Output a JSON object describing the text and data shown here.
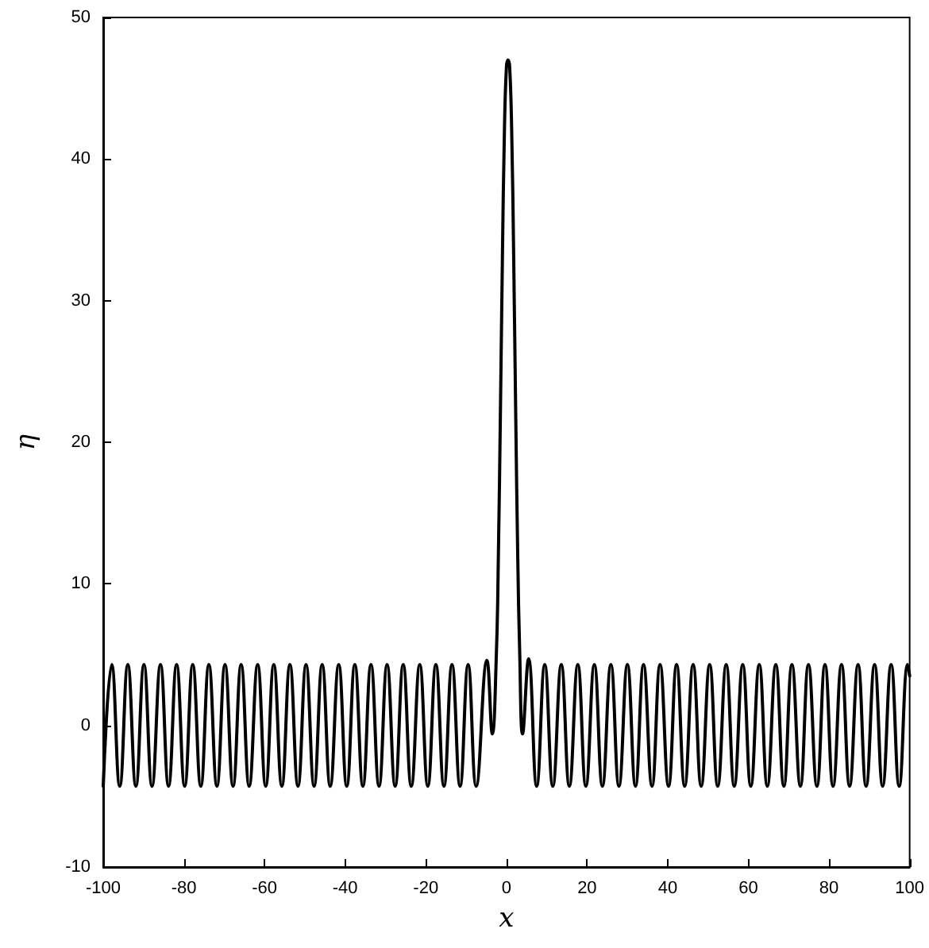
{
  "chart_data": {
    "type": "line",
    "xlabel": "x",
    "ylabel": "η",
    "x": [
      -100,
      -97.9,
      -95.9,
      -93.9,
      -91.9,
      -89.9,
      -87.9,
      -85.8,
      -83.8,
      -81.8,
      -79.8,
      -77.8,
      -75.8,
      -73.8,
      -71.8,
      -69.8,
      -67.8,
      -65.8,
      -63.8,
      -61.7,
      -59.7,
      -57.7,
      -55.7,
      -53.7,
      -51.7,
      -49.7,
      -47.7,
      -45.7,
      -43.7,
      -41.6,
      -39.6,
      -37.6,
      -35.6,
      -33.6,
      -31.6,
      -29.6,
      -27.6,
      -25.6,
      -23.6,
      -21.5,
      -19.5,
      -17.5,
      -15.5,
      -13.5,
      -11.5,
      -9.5,
      -7.5,
      -4.85,
      -3.5,
      -2.5,
      -2,
      -1.5,
      -1,
      -0.5,
      0,
      0.4,
      0.8,
      1.3,
      1.8,
      2.3,
      2.8,
      3.3,
      4,
      5.5,
      7.5,
      9.5,
      11.5,
      13.6,
      15.6,
      17.7,
      19.7,
      21.8,
      23.8,
      25.9,
      27.9,
      30,
      32,
      34,
      36.1,
      38.1,
      40.2,
      42.2,
      44.2,
      46.3,
      48.3,
      50.4,
      52.4,
      54.5,
      56.5,
      58.6,
      60.6,
      62.7,
      64.7,
      66.8,
      68.8,
      70.8,
      72.9,
      74.9,
      77,
      79,
      81,
      83.1,
      85.1,
      87.2,
      89.2,
      91.3,
      93.3,
      95.4,
      97.4,
      99.5,
      100
    ],
    "series": [
      {
        "color": "#000000",
        "values": [
          -4.3,
          4.3,
          -4.3,
          4.3,
          -4.3,
          4.3,
          -4.3,
          4.3,
          -4.3,
          4.3,
          -4.3,
          4.3,
          -4.3,
          4.3,
          -4.3,
          4.3,
          -4.3,
          4.3,
          -4.3,
          4.3,
          -4.3,
          4.3,
          -4.3,
          4.3,
          -4.3,
          4.3,
          -4.3,
          4.3,
          -4.3,
          4.3,
          -4.3,
          4.3,
          -4.3,
          4.3,
          -4.3,
          4.3,
          -4.3,
          4.3,
          -4.3,
          4.3,
          -4.3,
          4.3,
          -4.3,
          4.3,
          -4.3,
          4.3,
          -4.3,
          4.6,
          -0.6,
          5,
          12,
          22,
          33,
          42,
          46.5,
          47,
          46.5,
          42,
          33,
          22,
          12,
          5,
          -0.6,
          4.7,
          -4.3,
          4.3,
          -4.3,
          4.3,
          -4.3,
          4.3,
          -4.3,
          4.3,
          -4.3,
          4.3,
          -4.3,
          4.3,
          -4.3,
          4.3,
          -4.3,
          4.3,
          -4.3,
          4.3,
          -4.3,
          4.3,
          -4.3,
          4.3,
          -4.3,
          4.3,
          -4.3,
          4.3,
          -4.3,
          4.3,
          -4.3,
          4.3,
          -4.3,
          4.3,
          -4.3,
          4.3,
          -4.3,
          4.3,
          -4.3,
          4.3,
          -4.3,
          4.3,
          -4.3,
          4.3,
          -4.3,
          4.3,
          -4.3,
          4.3,
          3.5
        ]
      }
    ],
    "xlim": [
      -100,
      100
    ],
    "xticks": [
      -100,
      -80,
      -60,
      -40,
      -20,
      0,
      20,
      40,
      60,
      80,
      100
    ],
    "ylim": [
      -10,
      50
    ],
    "yticks": [
      -10,
      0,
      10,
      20,
      30,
      40,
      50
    ],
    "grid": false,
    "marker": "none",
    "line_style": "solid"
  }
}
